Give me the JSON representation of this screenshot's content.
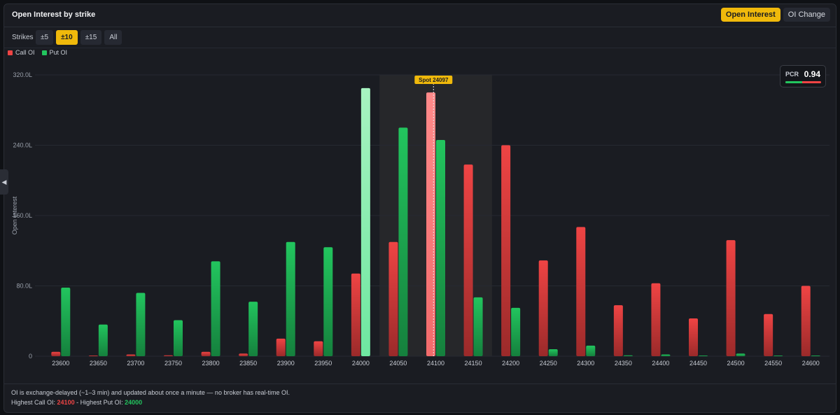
{
  "header": {
    "title": "Open Interest by strike",
    "tabs": [
      {
        "label": "Open Interest",
        "active": true
      },
      {
        "label": "OI Change",
        "active": false
      }
    ]
  },
  "strikes": {
    "label": "Strikes",
    "options": [
      {
        "label": "±5",
        "active": false
      },
      {
        "label": "±10",
        "active": true
      },
      {
        "label": "±15",
        "active": false
      },
      {
        "label": "All",
        "active": false
      }
    ]
  },
  "side_handle": {
    "icon": "chevron-left-icon",
    "glyph": "◀"
  },
  "pcr": {
    "label": "PCR",
    "value": "0.94",
    "put_share": 0.48
  },
  "footer": {
    "note": "OI is exchange-delayed (~1–3 min) and updated about once a minute — no broker has real-time OI.",
    "highest_call_label": "Highest Call OI:",
    "highest_call_value": "24100",
    "separator": " - ",
    "highest_put_label": "Highest Put OI:",
    "highest_put_value": "24000"
  },
  "colors": {
    "call": "#ef4444",
    "call_highlight": "#ff8080",
    "put": "#22c55e",
    "put_highlight": "#86efac",
    "accent": "#f0b90b",
    "grid": "#262932",
    "axis_text": "#9aa0ab",
    "band": "#26272a"
  },
  "chart_data": {
    "type": "bar",
    "categories": [
      "23600",
      "23650",
      "23700",
      "23750",
      "23800",
      "23850",
      "23900",
      "23950",
      "24000",
      "24050",
      "24100",
      "24150",
      "24200",
      "24250",
      "24300",
      "24350",
      "24400",
      "24450",
      "24500",
      "24550",
      "24600"
    ],
    "series": [
      {
        "name": "Call OI",
        "values": [
          5,
          0.5,
          2,
          1,
          5,
          3,
          20,
          17,
          94,
          130,
          300,
          218,
          240,
          109,
          147,
          58,
          83,
          43,
          132,
          48,
          80
        ]
      },
      {
        "name": "Put OI",
        "values": [
          78,
          36,
          72,
          41,
          108,
          62,
          130,
          124,
          305,
          260,
          246,
          67,
          55,
          8,
          12,
          1,
          2,
          0.5,
          3,
          0.3,
          0.3
        ]
      }
    ],
    "yticks": [
      "0",
      "80.0L",
      "160.0L",
      "240.0L",
      "320.0L"
    ],
    "ylim": [
      0,
      320
    ],
    "ylabel": "Open Interest",
    "spot_label": "Spot 24097",
    "spot_value": 24097,
    "band_strikes": [
      "24050",
      "24150"
    ],
    "highlight_call": "24100",
    "highlight_put": "24000",
    "legend": [
      "Call OI",
      "Put OI"
    ],
    "legend_position": "top-left",
    "grid": true
  }
}
